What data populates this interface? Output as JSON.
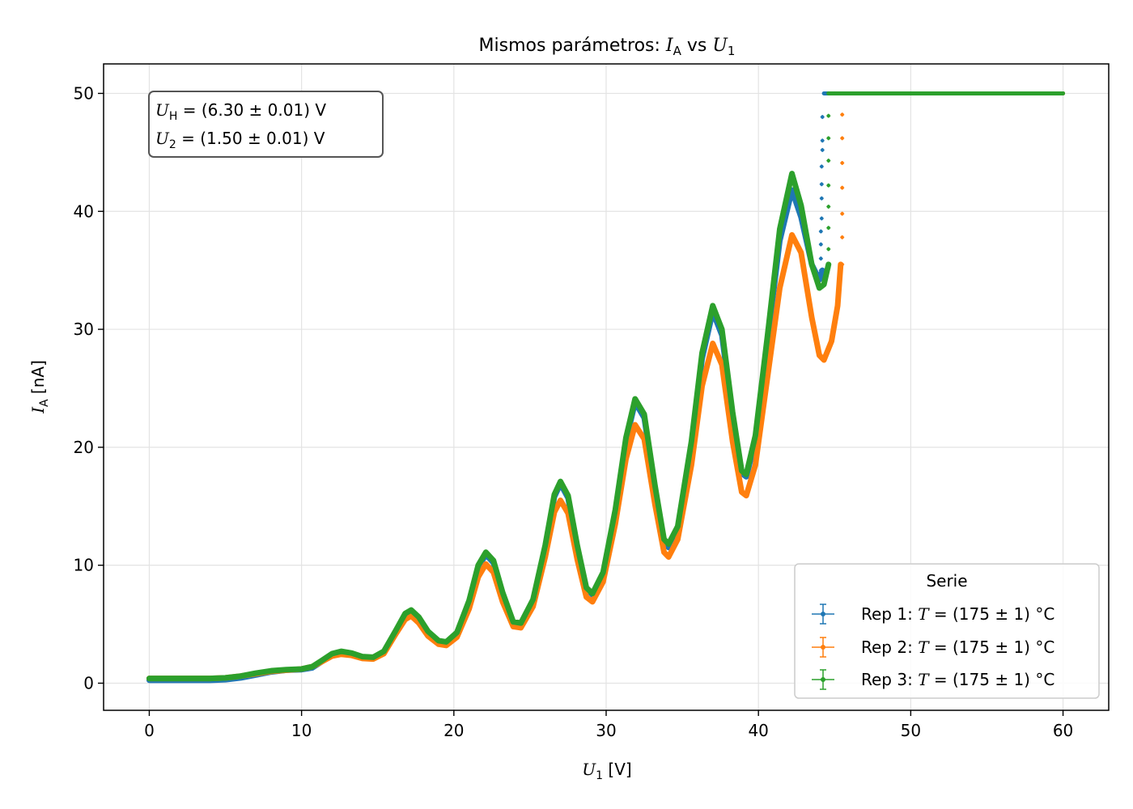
{
  "chart_data": {
    "type": "scatter",
    "title": {
      "prefix": "Mismos parámetros: ",
      "y_sym": "I",
      "y_sub": "A",
      "mid": " vs ",
      "x_sym": "U",
      "x_sub": "1"
    },
    "xlabel": {
      "sym": "U",
      "sub": "1",
      "unit": " [V]"
    },
    "ylabel": {
      "sym": "I",
      "sub": "A",
      "unit": " [nA]"
    },
    "xlim": [
      -3,
      63
    ],
    "ylim": [
      -2.3,
      52.5
    ],
    "xticks": [
      0,
      10,
      20,
      30,
      40,
      50,
      60
    ],
    "yticks": [
      0,
      10,
      20,
      30,
      40,
      50
    ],
    "grid": true,
    "annotation": [
      {
        "sym": "U",
        "sub": "H",
        "text": " = (6.30 ± 0.01) V"
      },
      {
        "sym": "U",
        "sub": "2",
        "text": " = (1.50 ± 0.01) V"
      }
    ],
    "legend": {
      "title": "Serie",
      "placement": "lower right"
    },
    "series": [
      {
        "name": "Rep 1: T = (175 ± 1) °C",
        "label_prefix": "Rep 1: ",
        "label_sym": "T",
        "label_rest": " = (175 ± 1) °C",
        "color": "#1f77b4",
        "points": [
          [
            0,
            0.25
          ],
          [
            2,
            0.25
          ],
          [
            4,
            0.25
          ],
          [
            5,
            0.3
          ],
          [
            6,
            0.45
          ],
          [
            7,
            0.7
          ],
          [
            8,
            0.95
          ],
          [
            9,
            1.1
          ],
          [
            10,
            1.15
          ],
          [
            10.7,
            1.3
          ],
          [
            11.3,
            1.8
          ],
          [
            12,
            2.4
          ],
          [
            12.6,
            2.6
          ],
          [
            13.3,
            2.5
          ],
          [
            14,
            2.2
          ],
          [
            14.7,
            2.15
          ],
          [
            15.4,
            2.6
          ],
          [
            16.2,
            4.4
          ],
          [
            16.8,
            5.8
          ],
          [
            17.2,
            6.1
          ],
          [
            17.7,
            5.5
          ],
          [
            18.3,
            4.3
          ],
          [
            19,
            3.5
          ],
          [
            19.5,
            3.4
          ],
          [
            20.2,
            4.2
          ],
          [
            21,
            6.8
          ],
          [
            21.6,
            9.8
          ],
          [
            22.1,
            10.9
          ],
          [
            22.6,
            10.2
          ],
          [
            23.2,
            7.5
          ],
          [
            23.9,
            5.1
          ],
          [
            24.4,
            5.0
          ],
          [
            25.2,
            7.0
          ],
          [
            26,
            11.5
          ],
          [
            26.6,
            15.8
          ],
          [
            27,
            16.9
          ],
          [
            27.5,
            15.7
          ],
          [
            28.1,
            11.5
          ],
          [
            28.7,
            8.0
          ],
          [
            29.1,
            7.5
          ],
          [
            29.8,
            9.2
          ],
          [
            30.6,
            14.5
          ],
          [
            31.3,
            20.5
          ],
          [
            31.9,
            23.8
          ],
          [
            32.5,
            22.5
          ],
          [
            33.2,
            16.5
          ],
          [
            33.8,
            12.0
          ],
          [
            34.1,
            11.5
          ],
          [
            34.7,
            13.0
          ],
          [
            35.6,
            20.0
          ],
          [
            36.3,
            27.5
          ],
          [
            37.0,
            31.5
          ],
          [
            37.6,
            29.5
          ],
          [
            38.3,
            22.5
          ],
          [
            38.9,
            17.8
          ],
          [
            39.2,
            17.5
          ],
          [
            39.8,
            20.5
          ],
          [
            40.6,
            29.0
          ],
          [
            41.4,
            37.5
          ],
          [
            42.2,
            41.8
          ],
          [
            42.8,
            39.5
          ],
          [
            43.5,
            35.5
          ],
          [
            44.0,
            34.2
          ],
          [
            44.2,
            35.0
          ]
        ],
        "scatter": [
          [
            44.1,
            35.0
          ],
          [
            44.1,
            36.0
          ],
          [
            44.1,
            37.2
          ],
          [
            44.1,
            38.3
          ],
          [
            44.15,
            39.4
          ],
          [
            44.15,
            41.1
          ],
          [
            44.15,
            42.3
          ],
          [
            44.15,
            43.8
          ],
          [
            44.2,
            45.2
          ],
          [
            44.2,
            46.0
          ],
          [
            44.2,
            48.0
          ]
        ],
        "plateau": [
          44.3,
          60.0,
          50.0
        ]
      },
      {
        "name": "Rep 2: T = (175 ± 1) °C",
        "label_prefix": "Rep 2: ",
        "label_sym": "T",
        "label_rest": " = (175 ± 1) °C",
        "color": "#ff7f0e",
        "points": [
          [
            0,
            0.4
          ],
          [
            2,
            0.4
          ],
          [
            4,
            0.4
          ],
          [
            5,
            0.45
          ],
          [
            6,
            0.6
          ],
          [
            7,
            0.8
          ],
          [
            8,
            1.0
          ],
          [
            9,
            1.1
          ],
          [
            10,
            1.2
          ],
          [
            10.7,
            1.4
          ],
          [
            11.3,
            1.8
          ],
          [
            12,
            2.3
          ],
          [
            12.6,
            2.45
          ],
          [
            13.3,
            2.35
          ],
          [
            14,
            2.1
          ],
          [
            14.7,
            2.05
          ],
          [
            15.4,
            2.5
          ],
          [
            16.2,
            4.2
          ],
          [
            16.8,
            5.4
          ],
          [
            17.2,
            5.7
          ],
          [
            17.7,
            5.1
          ],
          [
            18.3,
            4.0
          ],
          [
            19,
            3.3
          ],
          [
            19.5,
            3.2
          ],
          [
            20.2,
            3.9
          ],
          [
            21,
            6.3
          ],
          [
            21.6,
            9.0
          ],
          [
            22.1,
            10.1
          ],
          [
            22.6,
            9.4
          ],
          [
            23.2,
            6.9
          ],
          [
            23.9,
            4.8
          ],
          [
            24.4,
            4.7
          ],
          [
            25.2,
            6.5
          ],
          [
            26,
            10.7
          ],
          [
            26.6,
            14.5
          ],
          [
            27,
            15.5
          ],
          [
            27.5,
            14.4
          ],
          [
            28.1,
            10.5
          ],
          [
            28.7,
            7.3
          ],
          [
            29.1,
            6.9
          ],
          [
            29.8,
            8.6
          ],
          [
            30.6,
            13.5
          ],
          [
            31.3,
            19.0
          ],
          [
            31.9,
            21.9
          ],
          [
            32.5,
            20.7
          ],
          [
            33.2,
            15.2
          ],
          [
            33.8,
            11.1
          ],
          [
            34.1,
            10.7
          ],
          [
            34.7,
            12.2
          ],
          [
            35.6,
            18.5
          ],
          [
            36.3,
            25.2
          ],
          [
            37.0,
            28.8
          ],
          [
            37.6,
            27.0
          ],
          [
            38.3,
            20.5
          ],
          [
            38.9,
            16.2
          ],
          [
            39.2,
            15.9
          ],
          [
            39.8,
            18.5
          ],
          [
            40.6,
            26.0
          ],
          [
            41.4,
            33.5
          ],
          [
            42.2,
            38.0
          ],
          [
            42.8,
            36.5
          ],
          [
            43.5,
            31.0
          ],
          [
            44.0,
            27.8
          ],
          [
            44.3,
            27.4
          ],
          [
            44.8,
            29.0
          ],
          [
            45.2,
            32.0
          ],
          [
            45.4,
            35.5
          ]
        ],
        "scatter": [
          [
            45.5,
            35.5
          ],
          [
            45.5,
            37.8
          ],
          [
            45.5,
            39.8
          ],
          [
            45.5,
            42.0
          ],
          [
            45.5,
            44.1
          ],
          [
            45.5,
            46.2
          ],
          [
            45.5,
            48.2
          ],
          [
            45.0,
            50.0
          ]
        ],
        "plateau": [
          45.6,
          60.0,
          50.0
        ]
      },
      {
        "name": "Rep 3: T = (175 ± 1) °C",
        "label_prefix": "Rep 3: ",
        "label_sym": "T",
        "label_rest": " = (175 ± 1) °C",
        "color": "#2ca02c",
        "points": [
          [
            0,
            0.4
          ],
          [
            2,
            0.4
          ],
          [
            4,
            0.4
          ],
          [
            5,
            0.45
          ],
          [
            6,
            0.6
          ],
          [
            7,
            0.85
          ],
          [
            8,
            1.05
          ],
          [
            9,
            1.15
          ],
          [
            10,
            1.2
          ],
          [
            10.7,
            1.4
          ],
          [
            11.3,
            1.9
          ],
          [
            12,
            2.5
          ],
          [
            12.6,
            2.7
          ],
          [
            13.3,
            2.55
          ],
          [
            14,
            2.25
          ],
          [
            14.7,
            2.2
          ],
          [
            15.4,
            2.7
          ],
          [
            16.2,
            4.5
          ],
          [
            16.8,
            5.9
          ],
          [
            17.2,
            6.2
          ],
          [
            17.7,
            5.6
          ],
          [
            18.3,
            4.4
          ],
          [
            19,
            3.6
          ],
          [
            19.5,
            3.5
          ],
          [
            20.2,
            4.3
          ],
          [
            21,
            7.0
          ],
          [
            21.6,
            10.0
          ],
          [
            22.1,
            11.1
          ],
          [
            22.6,
            10.4
          ],
          [
            23.2,
            7.7
          ],
          [
            23.9,
            5.2
          ],
          [
            24.4,
            5.1
          ],
          [
            25.2,
            7.1
          ],
          [
            26,
            11.7
          ],
          [
            26.6,
            16.0
          ],
          [
            27,
            17.1
          ],
          [
            27.5,
            15.9
          ],
          [
            28.1,
            11.7
          ],
          [
            28.7,
            8.1
          ],
          [
            29.1,
            7.6
          ],
          [
            29.8,
            9.4
          ],
          [
            30.6,
            14.7
          ],
          [
            31.3,
            20.8
          ],
          [
            31.9,
            24.1
          ],
          [
            32.5,
            22.8
          ],
          [
            33.2,
            16.8
          ],
          [
            33.8,
            12.2
          ],
          [
            34.1,
            11.8
          ],
          [
            34.7,
            13.3
          ],
          [
            35.6,
            20.5
          ],
          [
            36.3,
            28.0
          ],
          [
            37.0,
            32.0
          ],
          [
            37.6,
            30.0
          ],
          [
            38.3,
            23.0
          ],
          [
            38.9,
            18.0
          ],
          [
            39.2,
            17.7
          ],
          [
            39.8,
            21.0
          ],
          [
            40.6,
            29.5
          ],
          [
            41.4,
            38.5
          ],
          [
            42.2,
            43.2
          ],
          [
            42.8,
            40.5
          ],
          [
            43.5,
            35.5
          ],
          [
            44.0,
            33.5
          ],
          [
            44.3,
            33.8
          ],
          [
            44.6,
            35.5
          ]
        ],
        "scatter": [
          [
            44.6,
            35.2
          ],
          [
            44.6,
            36.8
          ],
          [
            44.6,
            38.6
          ],
          [
            44.6,
            40.4
          ],
          [
            44.6,
            42.2
          ],
          [
            44.6,
            44.3
          ],
          [
            44.6,
            46.2
          ],
          [
            44.6,
            48.1
          ],
          [
            44.6,
            50.0
          ]
        ],
        "plateau": [
          44.6,
          60.0,
          50.0
        ]
      }
    ]
  }
}
